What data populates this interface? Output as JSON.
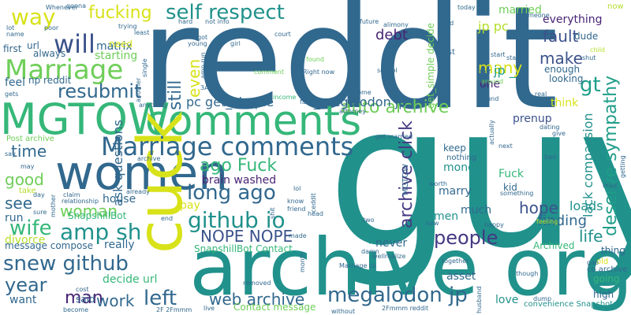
{
  "palette": {
    "dark_purple": "#482475",
    "purple": "#443983",
    "blue": "#31688e",
    "slate": "#3b528b",
    "teal": "#21918c",
    "green_teal": "#1f9e89",
    "green": "#35b779",
    "lime": "#6ece58",
    "yellow_green": "#b5de2b",
    "yellow": "#d8e219"
  },
  "words": [
    {
      "text": "reddit",
      "color": "#31688e"
    },
    {
      "text": "guy",
      "color": "#21918c"
    },
    {
      "text": "archive org",
      "color": "#21918c"
    },
    {
      "text": "women",
      "color": "#31688e"
    },
    {
      "text": "MGTOW",
      "color": "#35b779"
    },
    {
      "text": "comments",
      "color": "#35b779"
    },
    {
      "text": "cuck",
      "color": "#d8e219"
    },
    {
      "text": "Marriage comments",
      "color": "#31688e"
    },
    {
      "text": "Marriage",
      "color": "#6ece58"
    },
    {
      "text": "self respect",
      "color": "#21918c"
    },
    {
      "text": "fucking",
      "color": "#d8e219"
    },
    {
      "text": "will",
      "color": "#3b528b"
    },
    {
      "text": "way",
      "color": "#d8e219"
    },
    {
      "text": "resubmit",
      "color": "#31688e"
    },
    {
      "text": "github io",
      "color": "#21918c"
    },
    {
      "text": "ago Fuck",
      "color": "#35b779"
    },
    {
      "text": "long ago",
      "color": "#31688e"
    },
    {
      "text": "NOPE NOPE",
      "color": "#3b528b"
    },
    {
      "text": "amp sh",
      "color": "#21918c"
    },
    {
      "text": "wife",
      "color": "#35b779"
    },
    {
      "text": "snew github",
      "color": "#31688e"
    },
    {
      "text": "left",
      "color": "#31688e"
    },
    {
      "text": "web archive",
      "color": "#31688e"
    },
    {
      "text": "megalodon jp",
      "color": "#31688e"
    },
    {
      "text": "people",
      "color": "#443983"
    },
    {
      "text": "year",
      "color": "#31688e"
    },
    {
      "text": "man",
      "color": "#482475"
    },
    {
      "text": "work",
      "color": "#31688e"
    },
    {
      "text": "time",
      "color": "#31688e"
    },
    {
      "text": "woman",
      "color": "#6ece58"
    },
    {
      "text": "see",
      "color": "#31688e"
    },
    {
      "text": "good",
      "color": "#6ece58"
    },
    {
      "text": "auto archive",
      "color": "#6ece58"
    },
    {
      "text": "archive click",
      "color": "#443983"
    },
    {
      "text": "deserve sympathy",
      "color": "#1f9e89"
    },
    {
      "text": "make",
      "color": "#3b528b"
    },
    {
      "text": "fault",
      "color": "#3b528b"
    },
    {
      "text": "many",
      "color": "#d8e219"
    },
    {
      "text": "debt",
      "color": "#482475"
    },
    {
      "text": "still",
      "color": "#31688e"
    },
    {
      "text": "even",
      "color": "#d8e219"
    },
    {
      "text": "gt",
      "color": "#1f9e89"
    },
    {
      "text": "jp _",
      "color": "#1f9e89"
    },
    {
      "text": "jp pc",
      "color": "#b5de2b"
    },
    {
      "text": "one",
      "color": "#482475"
    },
    {
      "text": "married",
      "color": "#6ece58"
    },
    {
      "text": "everything",
      "color": "#482475"
    },
    {
      "text": "hope",
      "color": "#3b528b"
    },
    {
      "text": "life",
      "color": "#21918c"
    },
    {
      "text": "finding",
      "color": "#31688e"
    },
    {
      "text": "loads",
      "color": "#21918c"
    },
    {
      "text": "lack compassion",
      "color": "#21918c"
    },
    {
      "text": "pc get_simple",
      "color": "#31688e"
    },
    {
      "text": "_megalodon jp",
      "color": "#31688e"
    },
    {
      "text": "brain washed",
      "color": "#482475"
    },
    {
      "text": "ask questions",
      "color": "#31688e"
    },
    {
      "text": "matrix",
      "color": "#31688e"
    },
    {
      "text": "starting",
      "color": "#6ece58"
    },
    {
      "text": "need",
      "color": "#d8e219"
    },
    {
      "text": "always",
      "color": "#31688e"
    },
    {
      "text": "feel",
      "color": "#31688e"
    },
    {
      "text": "np reddit",
      "color": "#31688e"
    },
    {
      "text": "url",
      "color": "#31688e"
    },
    {
      "text": "first",
      "color": "#31688e"
    },
    {
      "text": "pay",
      "color": "#d8e219"
    },
    {
      "text": "SnapshillBot",
      "color": "#35b779"
    },
    {
      "text": "divorce",
      "color": "#b5de2b"
    },
    {
      "text": "run",
      "color": "#31688e"
    },
    {
      "text": "message compose",
      "color": "#31688e"
    },
    {
      "text": "really",
      "color": "#31688e"
    },
    {
      "text": "decide url",
      "color": "#35b779"
    },
    {
      "text": "want",
      "color": "#31688e"
    },
    {
      "text": "said",
      "color": "#31688e"
    },
    {
      "text": "SnapshillBot Contact",
      "color": "#35b779"
    },
    {
      "text": "Contact message",
      "color": "#6ece58"
    },
    {
      "text": "house",
      "color": "#31688e"
    },
    {
      "text": "much",
      "color": "#31688e"
    },
    {
      "text": "men",
      "color": "#21918c"
    },
    {
      "text": "never",
      "color": "#31688e"
    },
    {
      "text": "asset",
      "color": "#31688e"
    },
    {
      "text": "love",
      "color": "#21918c"
    },
    {
      "text": "money",
      "color": "#21918c"
    },
    {
      "text": "marry",
      "color": "#31688e"
    },
    {
      "text": "keep",
      "color": "#31688e"
    },
    {
      "text": "nothing",
      "color": "#31688e"
    },
    {
      "text": "Fuck",
      "color": "#35b779"
    },
    {
      "text": "kid",
      "color": "#31688e"
    },
    {
      "text": "prenup",
      "color": "#3b528b"
    },
    {
      "text": "think",
      "color": "#d8e219"
    },
    {
      "text": "enough",
      "color": "#31688e"
    },
    {
      "text": "dude",
      "color": "#31688e"
    },
    {
      "text": "looking",
      "color": "#31688e"
    },
    {
      "text": "thing",
      "color": "#31688e"
    },
    {
      "text": "Archived",
      "color": "#35b779"
    },
    {
      "text": "going",
      "color": "#35b779"
    },
    {
      "text": "high",
      "color": "#31688e"
    },
    {
      "text": "convenience Snapshots",
      "color": "#21918c"
    },
    {
      "text": "co archive",
      "color": "#31688e"
    },
    {
      "text": "get_simple decide",
      "color": "#6ece58"
    },
    {
      "text": "Post",
      "color": "#31688e"
    },
    {
      "text": "Right now",
      "color": "#31688e"
    },
    {
      "text": "comment",
      "color": "#6ece58"
    },
    {
      "text": "found",
      "color": "#6ece58"
    },
    {
      "text": "school",
      "color": "#31688e"
    },
    {
      "text": "income",
      "color": "#35b779"
    },
    {
      "text": "attorney",
      "color": "#31688e"
    },
    {
      "text": "home",
      "color": "#31688e"
    },
    {
      "text": "Post archive",
      "color": "#6ece58"
    },
    {
      "text": "say",
      "color": "#31688e"
    },
    {
      "text": "anything",
      "color": "#31688e"
    },
    {
      "text": "relationship",
      "color": "#31688e"
    },
    {
      "text": "take",
      "color": "#b5de2b"
    },
    {
      "text": "day",
      "color": "#31688e"
    },
    {
      "text": "gonna",
      "color": "#31688e"
    },
    {
      "text": "Whenever",
      "color": "#31688e"
    },
    {
      "text": "today",
      "color": "#31688e"
    },
    {
      "text": "now",
      "color": "#b5de2b"
    },
    {
      "text": "lot",
      "color": "#31688e"
    },
    {
      "text": "name",
      "color": "#31688e"
    },
    {
      "text": "poor",
      "color": "#31688e"
    },
    {
      "text": "trying",
      "color": "#31688e"
    },
    {
      "text": "least",
      "color": "#31688e"
    },
    {
      "text": "got",
      "color": "#31688e"
    },
    {
      "text": "hard",
      "color": "#31688e"
    },
    {
      "text": "not info",
      "color": "#31688e"
    },
    {
      "text": "young",
      "color": "#31688e"
    },
    {
      "text": "girl",
      "color": "#31688e"
    },
    {
      "text": "court",
      "color": "#31688e"
    },
    {
      "text": "future",
      "color": "#31688e"
    },
    {
      "text": "alimony",
      "color": "#31688e"
    },
    {
      "text": "someone",
      "color": "#31688e"
    },
    {
      "text": "lived",
      "color": "#31688e"
    },
    {
      "text": "start",
      "color": "#31688e"
    },
    {
      "text": "state",
      "color": "#31688e"
    },
    {
      "text": "child",
      "color": "#b5de2b"
    },
    {
      "text": "shut",
      "color": "#31688e"
    },
    {
      "text": "stuff",
      "color": "#31688e"
    },
    {
      "text": "around",
      "color": "#6ece58"
    },
    {
      "text": "real",
      "color": "#31688e"
    },
    {
      "text": "sound",
      "color": "#31688e"
    },
    {
      "text": "give",
      "color": "#31688e"
    },
    {
      "text": "dating",
      "color": "#31688e"
    },
    {
      "text": "next",
      "color": "#31688e"
    },
    {
      "text": "bad",
      "color": "#31688e"
    },
    {
      "text": "read",
      "color": "#31688e"
    },
    {
      "text": "feeling",
      "color": "#b5de2b"
    },
    {
      "text": "happy",
      "color": "#31688e"
    },
    {
      "text": "damn",
      "color": "#31688e"
    },
    {
      "text": "together",
      "color": "#31688e"
    },
    {
      "text": "wellrealize",
      "color": "#31688e"
    },
    {
      "text": "Marriage co",
      "color": "#31688e"
    },
    {
      "text": "though",
      "color": "#31688e"
    },
    {
      "text": "dump",
      "color": "#31688e"
    },
    {
      "text": "husband",
      "color": "#31688e"
    },
    {
      "text": "old",
      "color": "#d8e219"
    },
    {
      "text": "gap",
      "color": "#31688e"
    },
    {
      "text": "2Fmmm reddit",
      "color": "#31688e"
    },
    {
      "text": "without",
      "color": "#31688e"
    },
    {
      "text": "live",
      "color": "#31688e"
    },
    {
      "text": "2F 2Fmmm",
      "color": "#31688e"
    },
    {
      "text": "removed",
      "color": "#31688e"
    },
    {
      "text": "become",
      "color": "#31688e"
    },
    {
      "text": "cost",
      "color": "#31688e"
    },
    {
      "text": "made",
      "color": "#31688e"
    },
    {
      "text": "month",
      "color": "#31688e"
    },
    {
      "text": "head",
      "color": "#31688e"
    },
    {
      "text": "friend",
      "color": "#31688e"
    },
    {
      "text": "two",
      "color": "#31688e"
    },
    {
      "text": "end",
      "color": "#31688e"
    },
    {
      "text": "shit",
      "color": "#31688e"
    },
    {
      "text": "lol",
      "color": "#31688e"
    },
    {
      "text": "know",
      "color": "#31688e"
    },
    {
      "text": "ceddit",
      "color": "#31688e"
    },
    {
      "text": "mother",
      "color": "#31688e"
    },
    {
      "text": "sure",
      "color": "#31688e"
    },
    {
      "text": "claim",
      "color": "#31688e"
    },
    {
      "text": "already",
      "color": "#31688e"
    },
    {
      "text": "may",
      "color": "#31688e"
    },
    {
      "text": "3A 2F",
      "color": "#31688e"
    },
    {
      "text": "single",
      "color": "#31688e"
    },
    {
      "text": "another",
      "color": "#31688e"
    },
    {
      "text": "amp run",
      "color": "#31688e"
    },
    {
      "text": "far",
      "color": "#31688e"
    },
    {
      "text": "getting",
      "color": "#31688e"
    },
    {
      "text": "actually",
      "color": "#31688e"
    },
    {
      "text": "something",
      "color": "#31688e"
    },
    {
      "text": "worth",
      "color": "#31688e"
    },
    {
      "text": "new",
      "color": "#31688e"
    },
    {
      "text": "MGTOW",
      "color": "#31688e"
    },
    {
      "text": "get married",
      "color": "#31688e"
    },
    {
      "text": "archive",
      "color": "#31688e"
    },
    {
      "text": "gets",
      "color": "#31688e"
    }
  ]
}
